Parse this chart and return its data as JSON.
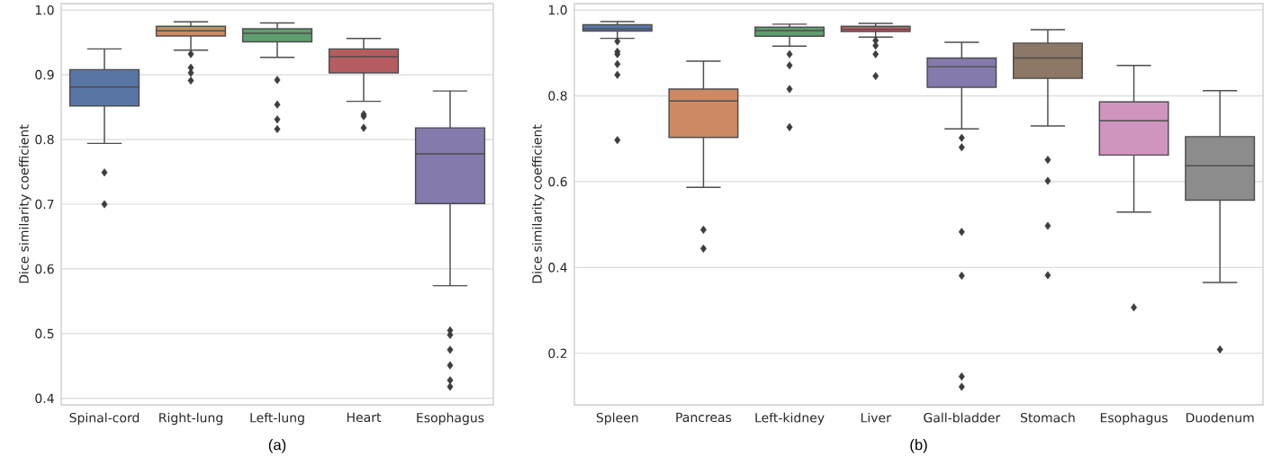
{
  "chart_data": [
    {
      "type": "box",
      "ylabel": "Dice similarity coefficient",
      "categories": [
        "Spinal-cord",
        "Right-lung",
        "Left-lung",
        "Heart",
        "Esophagus"
      ],
      "colors": [
        "#5875a4",
        "#cc8963",
        "#5f9e6e",
        "#b55d60",
        "#857aab"
      ],
      "boxes": [
        {
          "low": 0.794,
          "q1": 0.852,
          "median": 0.881,
          "q3": 0.908,
          "high": 0.94,
          "outliers": [
            0.749,
            0.7
          ]
        },
        {
          "low": 0.938,
          "q1": 0.96,
          "median": 0.968,
          "q3": 0.975,
          "high": 0.982,
          "outliers": [
            0.932,
            0.911,
            0.903,
            0.891
          ]
        },
        {
          "low": 0.927,
          "q1": 0.951,
          "median": 0.964,
          "q3": 0.971,
          "high": 0.98,
          "outliers": [
            0.892,
            0.854,
            0.831,
            0.816
          ]
        },
        {
          "low": 0.859,
          "q1": 0.903,
          "median": 0.928,
          "q3": 0.94,
          "high": 0.956,
          "outliers": [
            0.839,
            0.836,
            0.818
          ]
        },
        {
          "low": 0.574,
          "q1": 0.701,
          "median": 0.778,
          "q3": 0.818,
          "high": 0.875,
          "outliers": [
            0.505,
            0.498,
            0.475,
            0.451,
            0.428,
            0.418
          ]
        }
      ],
      "ylim": [
        0.39,
        1.01
      ],
      "yticks": [
        0.4,
        0.5,
        0.6,
        0.7,
        0.8,
        0.9,
        {
          "value": 1.0,
          "label": "1.0"
        }
      ],
      "grid": "y",
      "annotations": [
        "(a)"
      ]
    },
    {
      "type": "box",
      "ylabel": "Dice similarity coefficient",
      "categories": [
        "Spleen",
        "Pancreas",
        "Left-kidney",
        "Liver",
        "Gall-bladder",
        "Stomach",
        "Esophagus",
        "Duodenum"
      ],
      "colors": [
        "#5875a4",
        "#cc8963",
        "#5f9e6e",
        "#b55d60",
        "#857aab",
        "#8d7866",
        "#d095bf",
        "#8c8c8c"
      ],
      "boxes": [
        {
          "low": 0.934,
          "q1": 0.951,
          "median": 0.956,
          "q3": 0.966,
          "high": 0.973,
          "outliers": [
            0.927,
            0.903,
            0.897,
            0.874,
            0.849,
            0.697
          ]
        },
        {
          "low": 0.587,
          "q1": 0.703,
          "median": 0.788,
          "q3": 0.816,
          "high": 0.881,
          "outliers": [
            0.488,
            0.444
          ]
        },
        {
          "low": 0.916,
          "q1": 0.939,
          "median": 0.952,
          "q3": 0.96,
          "high": 0.967,
          "outliers": [
            0.897,
            0.871,
            0.816,
            0.727
          ]
        },
        {
          "low": 0.937,
          "q1": 0.95,
          "median": 0.955,
          "q3": 0.962,
          "high": 0.969,
          "outliers": [
            0.929,
            0.917,
            0.897,
            0.846
          ]
        },
        {
          "low": 0.723,
          "q1": 0.82,
          "median": 0.868,
          "q3": 0.888,
          "high": 0.925,
          "outliers": [
            0.702,
            0.68,
            0.483,
            0.381,
            0.146,
            0.122
          ]
        },
        {
          "low": 0.73,
          "q1": 0.841,
          "median": 0.888,
          "q3": 0.923,
          "high": 0.954,
          "outliers": [
            0.651,
            0.602,
            0.497,
            0.382
          ]
        },
        {
          "low": 0.529,
          "q1": 0.662,
          "median": 0.742,
          "q3": 0.786,
          "high": 0.871,
          "outliers": [
            0.307
          ]
        },
        {
          "low": 0.365,
          "q1": 0.557,
          "median": 0.637,
          "q3": 0.705,
          "high": 0.812,
          "outliers": [
            0.209
          ]
        }
      ],
      "ylim": [
        0.08,
        1.015
      ],
      "yticks": [
        0.2,
        0.4,
        0.6,
        0.8,
        {
          "value": 1.0,
          "label": "1.0"
        }
      ],
      "grid": "y",
      "annotations": [
        "(b)"
      ]
    }
  ]
}
